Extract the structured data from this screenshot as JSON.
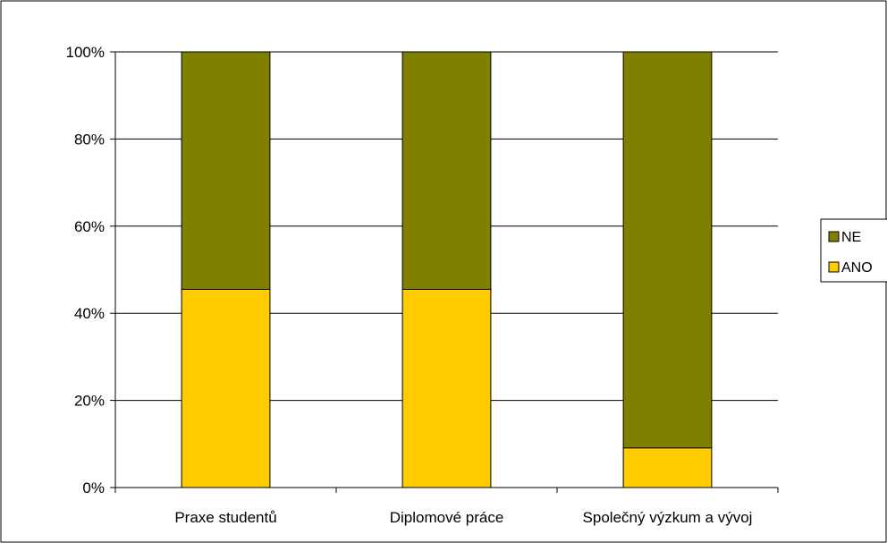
{
  "chart_data": {
    "type": "bar",
    "stacked": true,
    "percent_stacked": true,
    "categories": [
      "Praxe studentů",
      "Diplomové práce",
      "Společný výzkum a vývoj"
    ],
    "series": [
      {
        "name": "ANO",
        "values": [
          45.5,
          45.5,
          9.1
        ],
        "color": "#FFCC00"
      },
      {
        "name": "NE",
        "values": [
          54.5,
          54.5,
          90.9
        ],
        "color": "#808000"
      }
    ],
    "yticks": [
      "0%",
      "20%",
      "40%",
      "60%",
      "80%",
      "100%"
    ],
    "ylim": [
      0,
      100
    ],
    "grid": true,
    "legend_position": "right",
    "legend_order": [
      "NE",
      "ANO"
    ]
  }
}
